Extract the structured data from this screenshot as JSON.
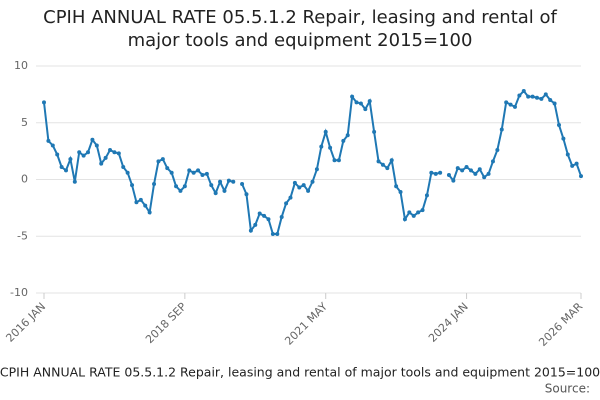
{
  "chart_data": {
    "type": "line",
    "title": "CPIH ANNUAL RATE 05.5.1.2 Repair, leasing and rental of major tools and equipment 2015=100",
    "source_label": "Source:",
    "categories": [
      "2016 JAN",
      null,
      null,
      null,
      null,
      null,
      null,
      null,
      null,
      null,
      null,
      null,
      null,
      null,
      null,
      null,
      null,
      null,
      null,
      null,
      null,
      null,
      null,
      null,
      null,
      null,
      null,
      null,
      null,
      null,
      null,
      null,
      "2018 SEP",
      null,
      null,
      null,
      null,
      null,
      null,
      null,
      null,
      null,
      null,
      null,
      null,
      null,
      null,
      null,
      null,
      null,
      null,
      null,
      null,
      null,
      null,
      null,
      null,
      null,
      null,
      null,
      null,
      null,
      null,
      null,
      "2021 MAY",
      null,
      null,
      null,
      null,
      null,
      null,
      null,
      null,
      null,
      null,
      null,
      null,
      null,
      null,
      null,
      null,
      null,
      null,
      null,
      null,
      null,
      null,
      null,
      null,
      null,
      null,
      null,
      null,
      null,
      null,
      null,
      "2024 JAN",
      null,
      null,
      null,
      null,
      null,
      null,
      null,
      null,
      null,
      null,
      null,
      null,
      null,
      null,
      null,
      null,
      null,
      null,
      null,
      null,
      null,
      null,
      null,
      null,
      null,
      "2026 MAR"
    ],
    "series": [
      {
        "name": "CPIH ANNUAL RATE 05.5.1.2 Repair, leasing and rental of major tools and equipment 2015=100",
        "color": "#1f78b4",
        "values": [
          6.8,
          3.4,
          3.0,
          2.2,
          1.1,
          0.8,
          1.8,
          -0.2,
          2.4,
          2.1,
          2.4,
          3.5,
          3.0,
          1.4,
          1.9,
          2.6,
          2.4,
          2.3,
          1.1,
          0.6,
          -0.5,
          -2.0,
          -1.8,
          -2.3,
          -2.9,
          -0.4,
          1.6,
          1.8,
          1.0,
          0.6,
          -0.6,
          -1.0,
          -0.6,
          0.8,
          0.6,
          0.8,
          0.4,
          0.5,
          -0.5,
          -1.2,
          -0.2,
          -1.0,
          -0.1,
          -0.2,
          null,
          -0.4,
          -1.3,
          -4.5,
          -4.0,
          -3.0,
          -3.2,
          -3.5,
          -4.8,
          -4.8,
          -3.3,
          -2.1,
          -1.6,
          -0.3,
          -0.7,
          -0.5,
          -1.0,
          -0.2,
          0.9,
          2.9,
          4.2,
          2.8,
          1.7,
          1.7,
          3.4,
          3.9,
          7.3,
          6.8,
          6.7,
          6.2,
          6.9,
          4.2,
          1.6,
          1.3,
          1.0,
          1.7,
          -0.6,
          -1.1,
          -3.5,
          -2.9,
          -3.2,
          -2.9,
          -2.7,
          -1.4,
          0.6,
          0.5,
          0.6,
          null,
          0.4,
          -0.1,
          1.0,
          0.8,
          1.1,
          0.8,
          0.5,
          0.9,
          0.2,
          0.5,
          1.6,
          2.6,
          4.4,
          6.8,
          6.6,
          6.4,
          7.4,
          7.8,
          7.3,
          7.3,
          7.2,
          7.1,
          7.5,
          7.0,
          6.7,
          4.8,
          3.6,
          2.2,
          1.2,
          1.4,
          0.3
        ]
      }
    ],
    "ylim": [
      -10,
      10
    ],
    "yticks": [
      10,
      5,
      0,
      -5,
      -10
    ],
    "grid": true
  }
}
